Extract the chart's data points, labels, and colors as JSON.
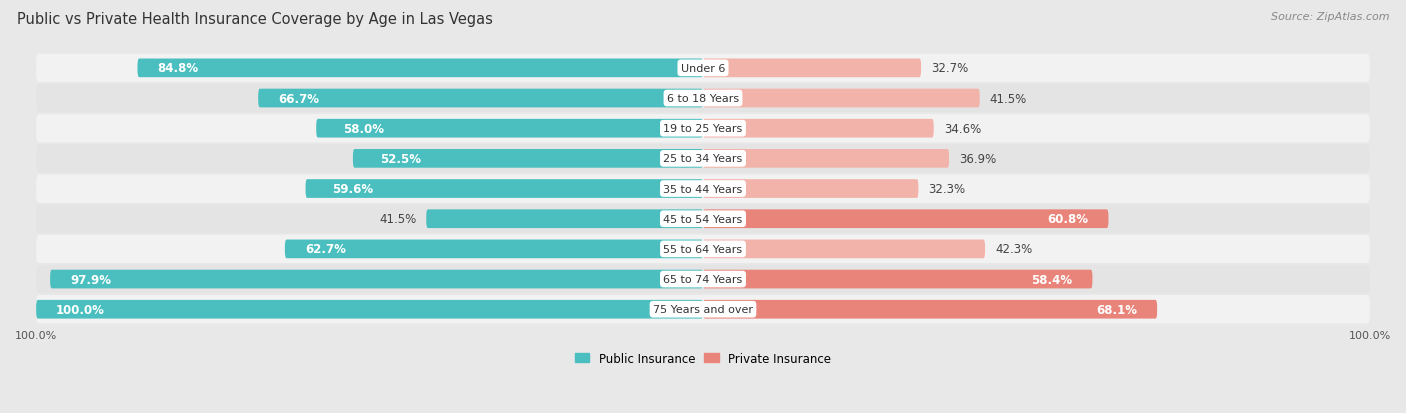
{
  "title": "Public vs Private Health Insurance Coverage by Age in Las Vegas",
  "source": "Source: ZipAtlas.com",
  "categories": [
    "Under 6",
    "6 to 18 Years",
    "19 to 25 Years",
    "25 to 34 Years",
    "35 to 44 Years",
    "45 to 54 Years",
    "55 to 64 Years",
    "65 to 74 Years",
    "75 Years and over"
  ],
  "public_values": [
    84.8,
    66.7,
    58.0,
    52.5,
    59.6,
    41.5,
    62.7,
    97.9,
    100.0
  ],
  "private_values": [
    32.7,
    41.5,
    34.6,
    36.9,
    32.3,
    60.8,
    42.3,
    58.4,
    68.1
  ],
  "public_color": "#4bbfbf",
  "private_color": "#e8847a",
  "private_color_light": "#f2b3aa",
  "background_color": "#e8e8e8",
  "row_bg_color": "#f2f2f2",
  "row_alt_color": "#e4e4e4",
  "bar_height": 0.62,
  "max_value": 100.0,
  "title_fontsize": 10.5,
  "label_fontsize": 8.5,
  "source_fontsize": 8,
  "axis_label_fontsize": 8
}
